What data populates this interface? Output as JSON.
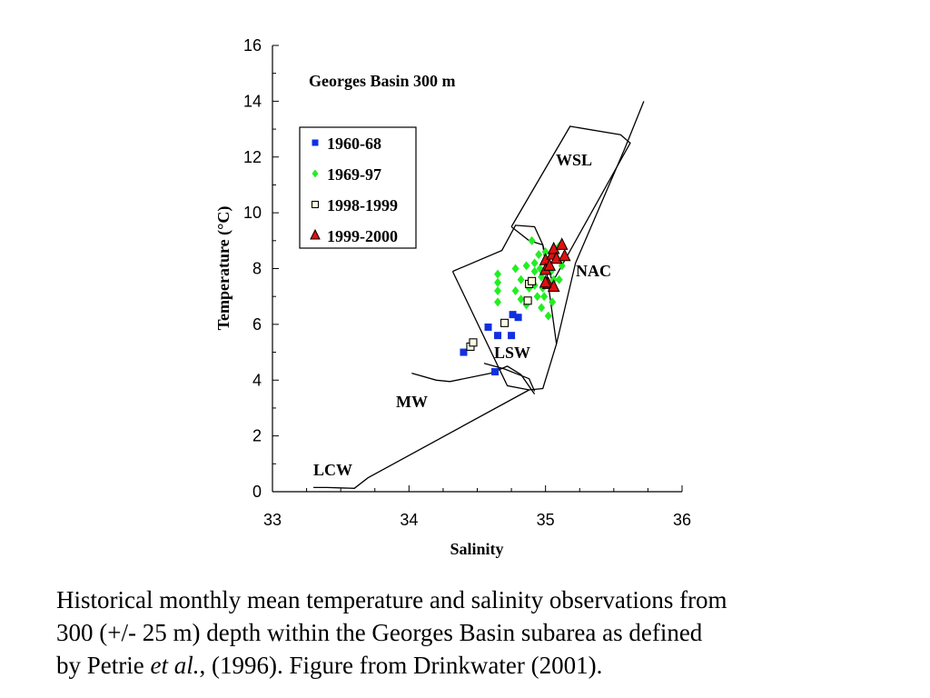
{
  "chart_data": {
    "type": "scatter",
    "title": "Georges Basin 300 m",
    "xlabel": "Salinity",
    "ylabel": "Temperature (°C)",
    "xlim": [
      33,
      36
    ],
    "ylim": [
      0,
      16
    ],
    "xticks": [
      33,
      34,
      35,
      36
    ],
    "yticks": [
      0,
      2,
      4,
      6,
      8,
      10,
      12,
      14,
      16
    ],
    "grid": false,
    "legend_position": "upper-left",
    "series": [
      {
        "name": "1960-68",
        "marker": "square",
        "color": "#1030e0",
        "points": [
          [
            34.4,
            5.0
          ],
          [
            34.58,
            5.9
          ],
          [
            34.65,
            5.6
          ],
          [
            34.75,
            5.6
          ],
          [
            34.76,
            6.35
          ],
          [
            34.8,
            6.25
          ],
          [
            34.63,
            4.3
          ]
        ]
      },
      {
        "name": "1969-97",
        "marker": "diamond",
        "color": "#22ee22",
        "points": [
          [
            34.65,
            7.8
          ],
          [
            34.65,
            7.5
          ],
          [
            34.65,
            7.2
          ],
          [
            34.65,
            6.8
          ],
          [
            34.78,
            8.0
          ],
          [
            34.78,
            7.2
          ],
          [
            34.82,
            7.6
          ],
          [
            34.82,
            6.9
          ],
          [
            34.86,
            6.7
          ],
          [
            34.9,
            9.0
          ],
          [
            34.92,
            8.2
          ],
          [
            34.92,
            7.9
          ],
          [
            34.92,
            7.4
          ],
          [
            34.94,
            7.0
          ],
          [
            34.95,
            8.5
          ],
          [
            34.96,
            8.0
          ],
          [
            34.97,
            7.7
          ],
          [
            34.98,
            7.3
          ],
          [
            34.99,
            7.0
          ],
          [
            35.0,
            8.6
          ],
          [
            35.02,
            8.2
          ],
          [
            35.02,
            6.3
          ],
          [
            35.04,
            7.9
          ],
          [
            35.06,
            7.6
          ],
          [
            35.08,
            8.4
          ],
          [
            35.1,
            8.8
          ],
          [
            35.12,
            8.1
          ],
          [
            35.1,
            7.6
          ],
          [
            34.97,
            6.6
          ],
          [
            35.05,
            6.8
          ],
          [
            34.88,
            7.3
          ],
          [
            34.86,
            8.1
          ]
        ]
      },
      {
        "name": "1998-1999",
        "marker": "open-square",
        "color": "#d8c800",
        "points": [
          [
            34.45,
            5.2
          ],
          [
            34.47,
            5.35
          ],
          [
            34.7,
            6.05
          ],
          [
            34.88,
            7.45
          ],
          [
            34.9,
            7.55
          ],
          [
            34.87,
            6.85
          ]
        ]
      },
      {
        "name": "1999-2000",
        "marker": "triangle",
        "color": "#e01010",
        "points": [
          [
            35.0,
            8.3
          ],
          [
            35.0,
            7.95
          ],
          [
            35.03,
            8.1
          ],
          [
            35.05,
            8.5
          ],
          [
            35.06,
            8.7
          ],
          [
            35.08,
            8.35
          ],
          [
            35.12,
            8.85
          ],
          [
            35.14,
            8.45
          ],
          [
            35.02,
            7.45
          ],
          [
            35.06,
            7.35
          ],
          [
            35.0,
            7.5
          ]
        ]
      }
    ],
    "annotations": [
      "WSL",
      "NAC",
      "LSW",
      "MW",
      "LCW"
    ],
    "water_mass_lines": {
      "lcw_ml": [
        [
          33.3,
          0.15
        ],
        [
          33.4,
          0.15
        ],
        [
          33.6,
          0.12
        ],
        [
          33.7,
          0.5
        ],
        [
          34.88,
          3.65
        ]
      ],
      "mw_lsw": [
        [
          34.02,
          4.25
        ],
        [
          34.2,
          4.0
        ],
        [
          34.3,
          3.95
        ],
        [
          34.6,
          4.25
        ],
        [
          34.72,
          4.5
        ],
        [
          34.82,
          4.2
        ],
        [
          34.92,
          3.5
        ]
      ],
      "lsw_nac_outline": [
        [
          34.32,
          7.9
        ],
        [
          34.68,
          8.65
        ],
        [
          34.78,
          9.55
        ],
        [
          34.92,
          9.5
        ],
        [
          34.98,
          8.85
        ],
        [
          35.08,
          5.3
        ],
        [
          34.98,
          3.7
        ],
        [
          34.88,
          3.65
        ],
        [
          34.72,
          3.8
        ],
        [
          34.32,
          7.9
        ]
      ],
      "wsl_box": [
        [
          34.75,
          9.5
        ],
        [
          35.18,
          13.1
        ],
        [
          35.55,
          12.8
        ],
        [
          35.62,
          12.5
        ],
        [
          35.05,
          7.5
        ],
        [
          34.98,
          8.85
        ],
        [
          34.88,
          9.0
        ],
        [
          34.75,
          9.5
        ]
      ],
      "nac_band": [
        [
          35.08,
          5.3
        ],
        [
          35.22,
          8.2
        ],
        [
          35.58,
          12.3
        ],
        [
          35.72,
          14.0
        ]
      ],
      "lsw_inner": [
        [
          34.55,
          4.6
        ],
        [
          34.7,
          4.4
        ],
        [
          34.88,
          4.05
        ],
        [
          34.92,
          3.6
        ]
      ]
    }
  },
  "caption": {
    "line1": "Historical monthly mean temperature and salinity observations from",
    "line2": "300 (+/- 25 m) depth within the Georges Basin subarea as defined",
    "line3a": "by Petrie ",
    "line3b": "et al.",
    "line3c": ", (1996). Figure from Drinkwater (2001)."
  }
}
